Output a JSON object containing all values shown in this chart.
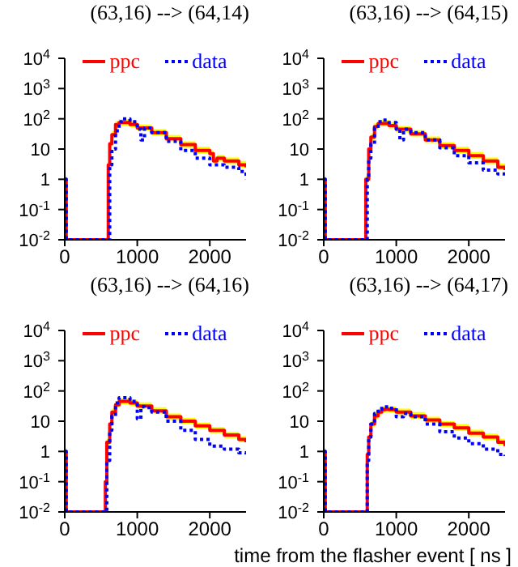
{
  "chart_data": [
    {
      "type": "step",
      "title": "(63,16) --> (64,14)",
      "log": "y",
      "xlim": [
        0,
        2500
      ],
      "xticks": [
        0,
        1000,
        2000
      ],
      "ylim": [
        0.01,
        10000
      ],
      "yticks": [
        {
          "value": 0.01,
          "label": "10$^{-2}$"
        },
        {
          "value": 0.1,
          "label": "10$^{-1}$"
        },
        {
          "value": 1,
          "label": "1"
        },
        {
          "value": 10,
          "label": "10"
        },
        {
          "value": 100,
          "label": "10$^{2}$"
        },
        {
          "value": 1000,
          "label": "10$^{3}$"
        },
        {
          "value": 10000,
          "label": "10$^{4}$"
        }
      ],
      "legend": "top",
      "grid": false,
      "series": [
        {
          "name": "ppc",
          "color": "#ff0000",
          "line_style": "solid",
          "x": [
            0,
            20,
            600,
            620,
            650,
            700,
            750,
            800,
            900,
            1000,
            1200,
            1400,
            1600,
            1800,
            2000,
            2050,
            2100,
            2200,
            2400,
            2500
          ],
          "values": [
            1,
            0.01,
            3,
            15,
            30,
            65,
            75,
            75,
            65,
            50,
            35,
            22,
            14,
            9,
            7,
            4,
            5,
            4,
            3,
            2.5
          ],
          "lower": [
            0.8,
            0.01,
            2.4,
            12,
            24,
            52,
            60,
            60,
            52,
            40,
            28,
            18,
            11,
            7,
            5.5,
            3.2,
            4,
            3.2,
            2.4,
            2
          ],
          "upper": [
            1.3,
            0.01,
            4,
            20,
            40,
            85,
            98,
            98,
            85,
            65,
            46,
            29,
            18,
            12,
            9,
            5.2,
            6.5,
            5.2,
            4,
            3.2
          ]
        },
        {
          "name": "data",
          "color": "#0000ff",
          "line_style": "dotted",
          "x": [
            0,
            20,
            620,
            650,
            700,
            750,
            800,
            900,
            1000,
            1050,
            1100,
            1200,
            1400,
            1600,
            1800,
            2000,
            2200,
            2400,
            2500
          ],
          "values": [
            1,
            0.01,
            3,
            10,
            40,
            80,
            100,
            80,
            45,
            20,
            50,
            35,
            18,
            9,
            5,
            3,
            2.5,
            1.8,
            1
          ]
        }
      ]
    },
    {
      "type": "step",
      "title": "(63,16) --> (64,15)",
      "log": "y",
      "xlim": [
        0,
        2500
      ],
      "xticks": [
        0,
        1000,
        2000
      ],
      "ylim": [
        0.01,
        10000
      ],
      "yticks": [
        {
          "value": 0.01,
          "label": "10$^{-2}$"
        },
        {
          "value": 0.1,
          "label": "10$^{-1}$"
        },
        {
          "value": 1,
          "label": "1"
        },
        {
          "value": 10,
          "label": "10"
        },
        {
          "value": 100,
          "label": "10$^{2}$"
        },
        {
          "value": 1000,
          "label": "10$^{3}$"
        },
        {
          "value": 10000,
          "label": "10$^{4}$"
        }
      ],
      "legend": "top",
      "grid": false,
      "series": [
        {
          "name": "ppc",
          "color": "#ff0000",
          "line_style": "solid",
          "x": [
            0,
            20,
            580,
            620,
            650,
            700,
            750,
            800,
            900,
            1000,
            1200,
            1400,
            1600,
            1800,
            2000,
            2200,
            2400,
            2500
          ],
          "values": [
            1,
            0.01,
            1,
            10,
            25,
            55,
            70,
            70,
            60,
            45,
            32,
            20,
            13,
            9,
            6,
            4,
            2.5,
            2
          ],
          "lower": [
            0.8,
            0.01,
            0.8,
            8,
            20,
            44,
            56,
            56,
            48,
            36,
            26,
            16,
            10,
            7,
            4.8,
            3.2,
            2,
            1.6
          ],
          "upper": [
            1.3,
            0.01,
            1.3,
            13,
            33,
            72,
            92,
            92,
            78,
            58,
            42,
            26,
            17,
            12,
            8,
            5.2,
            3.3,
            2.6
          ]
        },
        {
          "name": "data",
          "color": "#0000ff",
          "line_style": "dotted",
          "x": [
            0,
            20,
            600,
            620,
            650,
            700,
            750,
            800,
            900,
            1000,
            1050,
            1100,
            1200,
            1400,
            1600,
            1800,
            2000,
            2200,
            2400,
            2500
          ],
          "values": [
            1,
            0.01,
            1,
            5,
            15,
            50,
            80,
            90,
            75,
            45,
            20,
            45,
            35,
            20,
            11,
            6,
            3.5,
            2,
            1.5,
            1.1
          ]
        }
      ]
    },
    {
      "type": "step",
      "title": "(63,16) --> (64,16)",
      "log": "y",
      "xlim": [
        0,
        2500
      ],
      "xticks": [
        0,
        1000,
        2000
      ],
      "ylim": [
        0.01,
        10000
      ],
      "yticks": [
        {
          "value": 0.01,
          "label": "10$^{-2}$"
        },
        {
          "value": 0.1,
          "label": "10$^{-1}$"
        },
        {
          "value": 1,
          "label": "1"
        },
        {
          "value": 10,
          "label": "10"
        },
        {
          "value": 100,
          "label": "10$^{2}$"
        },
        {
          "value": 1000,
          "label": "10$^{3}$"
        },
        {
          "value": 10000,
          "label": "10$^{4}$"
        }
      ],
      "legend": "top",
      "grid": false,
      "series": [
        {
          "name": "ppc",
          "color": "#ff0000",
          "line_style": "solid",
          "x": [
            0,
            20,
            560,
            580,
            620,
            650,
            700,
            750,
            800,
            900,
            1000,
            1200,
            1400,
            1600,
            1800,
            2000,
            2200,
            2400,
            2500
          ],
          "values": [
            1,
            0.01,
            0.1,
            2,
            8,
            20,
            35,
            45,
            45,
            40,
            32,
            22,
            14,
            10,
            7,
            5,
            3.5,
            2.5,
            2
          ],
          "lower": [
            0.8,
            0.01,
            0.08,
            1.6,
            6.4,
            16,
            28,
            36,
            36,
            32,
            26,
            18,
            11,
            8,
            5.6,
            4,
            2.8,
            2,
            1.6
          ],
          "upper": [
            1.3,
            0.01,
            0.13,
            2.6,
            10.4,
            26,
            46,
            58,
            58,
            52,
            42,
            29,
            18,
            13,
            9,
            6.5,
            4.5,
            3.2,
            2.6
          ]
        },
        {
          "name": "data",
          "color": "#0000ff",
          "line_style": "dotted",
          "x": [
            0,
            20,
            580,
            620,
            650,
            700,
            750,
            800,
            900,
            1000,
            1050,
            1100,
            1200,
            1400,
            1600,
            1800,
            2000,
            2200,
            2400,
            2500
          ],
          "values": [
            1,
            0.01,
            0.5,
            5,
            15,
            40,
            60,
            60,
            45,
            12,
            30,
            28,
            20,
            10,
            5,
            2.5,
            1.5,
            1.2,
            0.9,
            0.8
          ]
        }
      ]
    },
    {
      "type": "step",
      "title": "(63,16) --> (64,17)",
      "xlabel": "time from the flasher event [ ns ]",
      "log": "y",
      "xlim": [
        0,
        2500
      ],
      "xticks": [
        0,
        1000,
        2000
      ],
      "ylim": [
        0.01,
        10000
      ],
      "yticks": [
        {
          "value": 0.01,
          "label": "10$^{-2}$"
        },
        {
          "value": 0.1,
          "label": "10$^{-1}$"
        },
        {
          "value": 1,
          "label": "1"
        },
        {
          "value": 10,
          "label": "10"
        },
        {
          "value": 100,
          "label": "10$^{2}$"
        },
        {
          "value": 1000,
          "label": "10$^{3}$"
        },
        {
          "value": 10000,
          "label": "10$^{4}$"
        }
      ],
      "legend": "top",
      "grid": false,
      "series": [
        {
          "name": "ppc",
          "color": "#ff0000",
          "line_style": "solid",
          "x": [
            0,
            20,
            600,
            620,
            650,
            700,
            750,
            800,
            850,
            900,
            1000,
            1200,
            1400,
            1600,
            1800,
            2000,
            2200,
            2400,
            2500
          ],
          "values": [
            1,
            0.01,
            0.8,
            3,
            8,
            15,
            20,
            24,
            25,
            24,
            20,
            15,
            11,
            8,
            6,
            4,
            3,
            2,
            1.5
          ],
          "lower": [
            0.8,
            0.01,
            0.64,
            2.4,
            6.4,
            12,
            16,
            19,
            20,
            19,
            16,
            12,
            9,
            6.4,
            4.8,
            3.2,
            2.4,
            1.6,
            1.2
          ],
          "upper": [
            1.3,
            0.01,
            1,
            3.9,
            10.4,
            20,
            26,
            31,
            33,
            31,
            26,
            20,
            14,
            10,
            8,
            5.2,
            3.9,
            2.6,
            2
          ]
        },
        {
          "name": "data",
          "color": "#0000ff",
          "line_style": "dotted",
          "x": [
            0,
            20,
            600,
            620,
            650,
            700,
            750,
            800,
            850,
            900,
            1000,
            1100,
            1200,
            1400,
            1600,
            1800,
            2000,
            2200,
            2400,
            2500
          ],
          "values": [
            1,
            0.01,
            0.5,
            3,
            8,
            18,
            25,
            30,
            30,
            27,
            14,
            18,
            14,
            8,
            4.5,
            2.8,
            1.8,
            1.2,
            0.8,
            0.7
          ]
        }
      ]
    }
  ]
}
